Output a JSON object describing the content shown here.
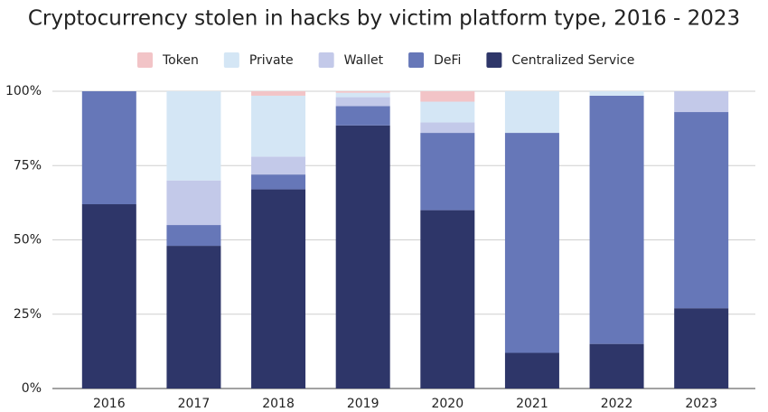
{
  "chart_data": {
    "type": "stacked_bar",
    "title": "Cryptocurrency stolen in hacks by victim platform type, 2016 - 2023",
    "categories": [
      "2016",
      "2017",
      "2018",
      "2019",
      "2020",
      "2021",
      "2022",
      "2023"
    ],
    "series": [
      {
        "name": "Token",
        "color": "#f2c4c7",
        "values": [
          0,
          0,
          1.5,
          0.5,
          3.5,
          0,
          0,
          0
        ]
      },
      {
        "name": "Private",
        "color": "#d4e6f5",
        "values": [
          0,
          30,
          20.5,
          1.5,
          7,
          14,
          1.5,
          0
        ]
      },
      {
        "name": "Wallet",
        "color": "#c3c9e9",
        "values": [
          0,
          15,
          6,
          3,
          3.5,
          0,
          0,
          7
        ]
      },
      {
        "name": "DeFi",
        "color": "#6677b8",
        "values": [
          38,
          7,
          5,
          6.5,
          26,
          74,
          83.5,
          66
        ]
      },
      {
        "name": "Centralized Service",
        "color": "#2e3669",
        "values": [
          62,
          48,
          67,
          88.5,
          60,
          12,
          15,
          27
        ]
      }
    ],
    "ylim": [
      0,
      100
    ],
    "yticks": [
      {
        "value": 0,
        "label": "0%"
      },
      {
        "value": 25,
        "label": "25%"
      },
      {
        "value": 50,
        "label": "50%"
      },
      {
        "value": 75,
        "label": "75%"
      },
      {
        "value": 100,
        "label": "100%"
      }
    ],
    "grid": true
  }
}
